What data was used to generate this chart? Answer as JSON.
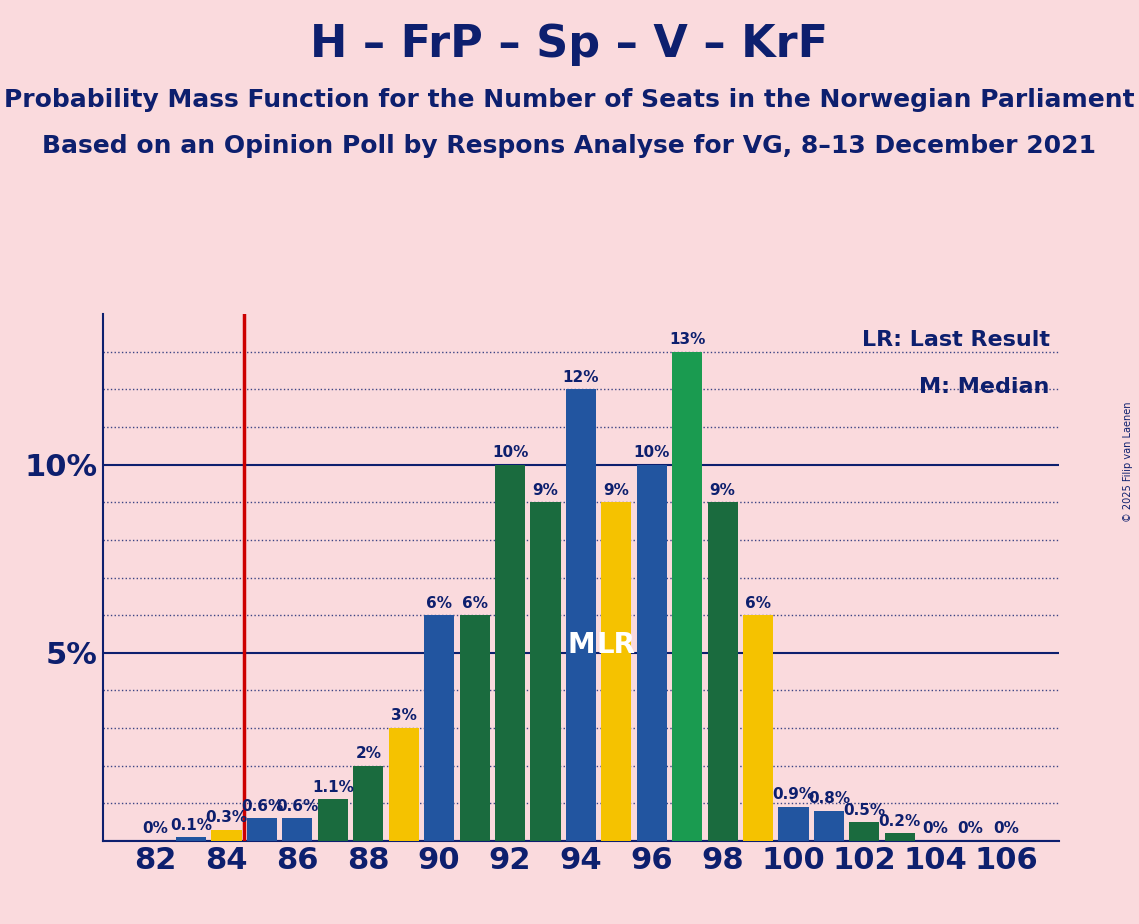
{
  "title": "H – FrP – Sp – V – KrF",
  "subtitle1": "Probability Mass Function for the Number of Seats in the Norwegian Parliament",
  "subtitle2": "Based on an Opinion Poll by Respons Analyse for VG, 8–13 December 2021",
  "copyright": "© 2025 Filip van Laenen",
  "legend_lr": "LR: Last Result",
  "legend_m": "M: Median",
  "background_color": "#FADADD",
  "title_color": "#0D1F6E",
  "lr_line_x": 84.5,
  "lr_color": "#CC0000",
  "seats": [
    82,
    83,
    84,
    85,
    86,
    87,
    88,
    89,
    90,
    91,
    92,
    93,
    94,
    95,
    96,
    97,
    98,
    99,
    100,
    101,
    102,
    103,
    104,
    105,
    106
  ],
  "values": [
    0.0,
    0.1,
    0.3,
    0.6,
    0.6,
    1.1,
    2.0,
    3.0,
    6.0,
    6.0,
    10.0,
    9.0,
    12.0,
    9.0,
    10.0,
    13.0,
    9.0,
    6.0,
    0.9,
    0.8,
    0.5,
    0.2,
    0.0,
    0.0,
    0.0
  ],
  "bar_colors": [
    "#1A6B3E",
    "#2255A0",
    "#F5C200",
    "#2255A0",
    "#2255A0",
    "#1A6B3E",
    "#1A6B3E",
    "#F5C200",
    "#2255A0",
    "#1A6B3E",
    "#1A6B3E",
    "#1A6B3E",
    "#2255A0",
    "#F5C200",
    "#2255A0",
    "#1A9B50",
    "#1A6B3E",
    "#F5C200",
    "#2255A0",
    "#2255A0",
    "#1A6B3E",
    "#1A6B3E",
    "#2255A0",
    "#2255A0",
    "#2255A0"
  ],
  "median_seat": 94,
  "lr_seat": 95,
  "ylim_max": 14,
  "yticks": [
    5,
    10
  ],
  "ytick_labels": [
    "5%",
    "10%"
  ],
  "xticks": [
    82,
    84,
    86,
    88,
    90,
    92,
    94,
    96,
    98,
    100,
    102,
    104,
    106
  ],
  "xlim": [
    80.5,
    107.5
  ],
  "axis_color": "#0D1F6E",
  "grid_color": "#0D1F6E",
  "label_fontsize": 11,
  "tick_fontsize": 22,
  "title_fontsize": 32,
  "subtitle_fontsize": 18,
  "legend_fontsize": 16
}
